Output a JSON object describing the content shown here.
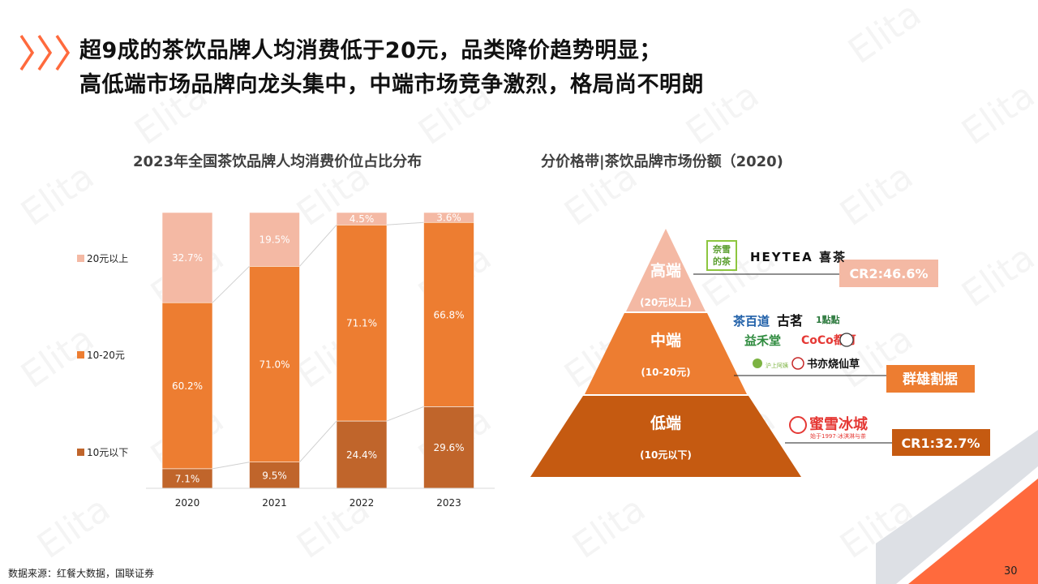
{
  "header": {
    "title_line1": "超9成的茶饮品牌人均消费低于20元，品类降价趋势明显；",
    "title_line2": "高低端市场品牌向龙头集中，中端市场竞争激烈，格局尚不明朗"
  },
  "watermark": "Elita",
  "chart_data": {
    "type": "bar",
    "stacked": true,
    "title": "2023年全国茶饮品牌人均消费价位占比分布",
    "categories": [
      "2020",
      "2021",
      "2022",
      "2023"
    ],
    "series": [
      {
        "name": "10元以下",
        "color": "#C0652B",
        "values": [
          7.1,
          9.5,
          24.4,
          29.6
        ],
        "labels": [
          "7.1%",
          "9.5%",
          "24.4%",
          "29.6%"
        ]
      },
      {
        "name": "10-20元",
        "color": "#ED7D31",
        "values": [
          60.2,
          71.0,
          71.1,
          66.8
        ],
        "labels": [
          "60.2%",
          "71.0%",
          "71.1%",
          "66.8%"
        ]
      },
      {
        "name": "20元以上",
        "color": "#F4B9A4",
        "values": [
          32.7,
          19.5,
          4.5,
          3.6
        ],
        "labels": [
          "32.7%",
          "19.5%",
          "4.5%",
          "3.6%"
        ]
      }
    ],
    "legend_order": [
      "20元以上",
      "10-20元",
      "10元以下"
    ],
    "legend_position": "left",
    "ylim": [
      0,
      100
    ],
    "grid": false
  },
  "pyramid": {
    "title": "分价格带|茶饮品牌市场份额（2020)",
    "tiers": [
      {
        "name": "高端",
        "range": "(20元以上)",
        "color": "#F4B9A4",
        "tag": "CR2:46.6%",
        "brands": [
          "奈雪的茶",
          "HEYTEA 喜茶"
        ]
      },
      {
        "name": "中端",
        "range": "(10-20元)",
        "color": "#ED7D31",
        "tag": "群雄割据",
        "brands": [
          "茶百道",
          "古茗",
          "1點點",
          "益禾堂",
          "CoCo都可",
          "沪上阿姨",
          "书亦烧仙草"
        ]
      },
      {
        "name": "低端",
        "range": "(10元以下)",
        "color": "#C55A11",
        "tag": "CR1:32.7%",
        "brands": [
          "蜜雪冰城"
        ],
        "brand_sub": "始于1997·冰淇淋与茶"
      }
    ]
  },
  "footer": {
    "source": "数据来源：红餐大数据，国联证券",
    "page": "30"
  }
}
